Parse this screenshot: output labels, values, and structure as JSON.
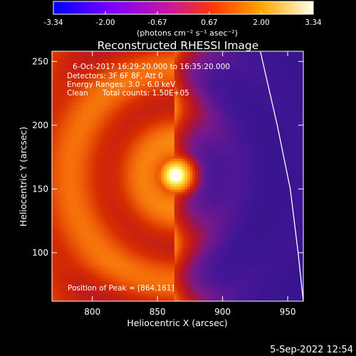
{
  "chart_data": {
    "type": "heatmap",
    "title": "Reconstructed RHESSI Image",
    "xlabel": "Heliocentric X (arcsec)",
    "ylabel": "Heliocentric Y (arcsec)",
    "xlim": [
      769,
      962
    ],
    "ylim": [
      62,
      258
    ],
    "x_ticks": [
      800,
      850,
      900,
      950
    ],
    "y_ticks": [
      100,
      150,
      200,
      250
    ],
    "colorbar": {
      "ticks": [
        "-3.34",
        "-2.00",
        "-0.67",
        "0.67",
        "2.00",
        "3.34"
      ],
      "range": [
        -3.34,
        3.34
      ],
      "unit_label": "(photons cm⁻² s⁻¹ asec⁻²)"
    },
    "annotations": [
      "6-Oct-2017 16:29:20.000 to 16:35:20.000",
      "Detectors: 3F 6F 8F, Att 0",
      "Energy Ranges: 3.0 - 6.0 keV",
      "Clean      Total counts: 1.50E+05"
    ],
    "peak_label": "Position of Peak = [864,161]",
    "peak": {
      "x": 864,
      "y": 161,
      "value": 3.34
    },
    "limb_arc": [
      [
        929,
        258
      ],
      [
        942,
        200
      ],
      [
        952,
        150
      ],
      [
        958,
        100
      ],
      [
        962,
        62
      ]
    ],
    "grid": false,
    "legend": "none"
  },
  "footer": {
    "timestamp": "5-Sep-2022 12:54"
  }
}
